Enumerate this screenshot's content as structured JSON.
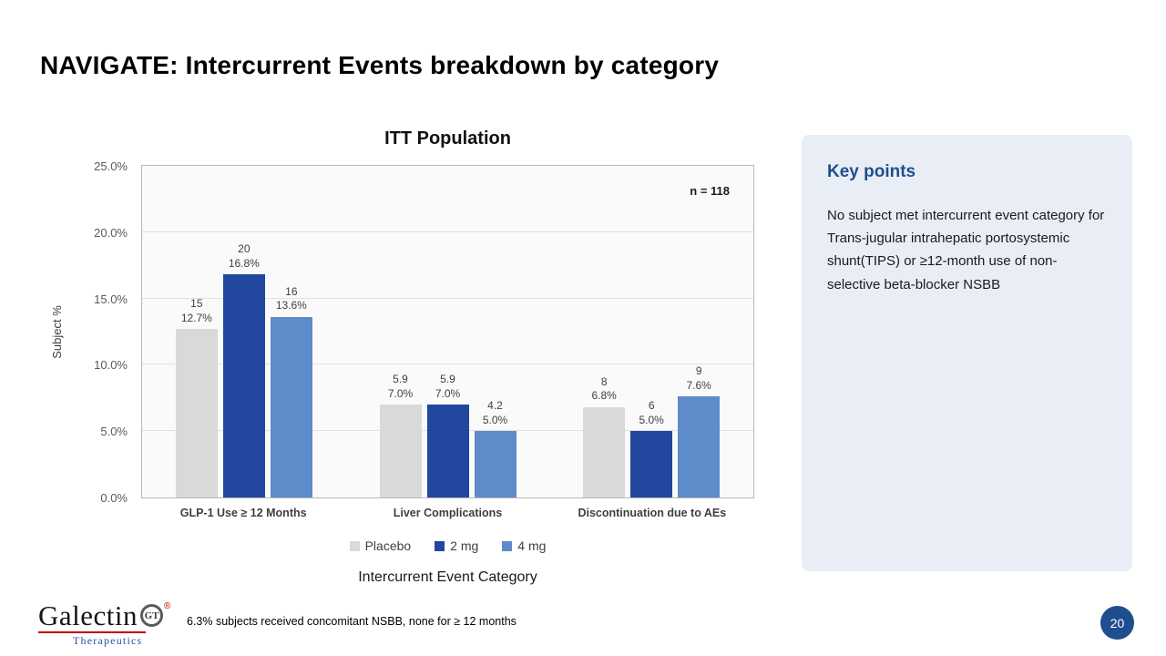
{
  "slide": {
    "title": "NAVIGATE: Intercurrent Events breakdown by category",
    "footnote": "6.3% subjects received concomitant NSBB, none for ≥ 12 months",
    "page_number": "20"
  },
  "logo": {
    "wordmark": "Galectin",
    "subtitle": "Therapeutics",
    "emblem": "GT",
    "reg_mark": "®"
  },
  "key_points": {
    "heading": "Key points",
    "body": "No subject met intercurrent event category for Trans-jugular intrahepatic portosystemic shunt(TIPS) or ≥12-month use of non-selective beta-blocker NSBB"
  },
  "chart_data": {
    "type": "bar",
    "title": "ITT Population",
    "annotation": "n = 118",
    "xlabel": "Intercurrent Event Category",
    "ylabel": "Subject %",
    "ylim": [
      0,
      25
    ],
    "yticks": [
      0,
      5,
      10,
      15,
      20,
      25
    ],
    "ytick_labels": [
      "0.0%",
      "5.0%",
      "10.0%",
      "15.0%",
      "20.0%",
      "25.0%"
    ],
    "grid": true,
    "legend_position": "bottom",
    "categories": [
      "GLP-1 Use ≥ 12 Months",
      "Liver Complications",
      "Discontinuation due to AEs"
    ],
    "series": [
      {
        "name": "Placebo",
        "color": "#d9d9d9",
        "values": [
          12.7,
          7.0,
          6.8
        ],
        "bar_labels": [
          [
            "15",
            "12.7%"
          ],
          [
            "5.9",
            "7.0%"
          ],
          [
            "8",
            "6.8%"
          ]
        ]
      },
      {
        "name": "2 mg",
        "color": "#21479f",
        "values": [
          16.8,
          7.0,
          5.0
        ],
        "bar_labels": [
          [
            "20",
            "16.8%"
          ],
          [
            "5.9",
            "7.0%"
          ],
          [
            "6",
            "5.0%"
          ]
        ]
      },
      {
        "name": "4 mg",
        "color": "#5e8bc9",
        "values": [
          13.6,
          5.0,
          7.6
        ],
        "bar_labels": [
          [
            "16",
            "13.6%"
          ],
          [
            "4.2",
            "5.0%"
          ],
          [
            "9",
            "7.6%"
          ]
        ]
      }
    ]
  }
}
